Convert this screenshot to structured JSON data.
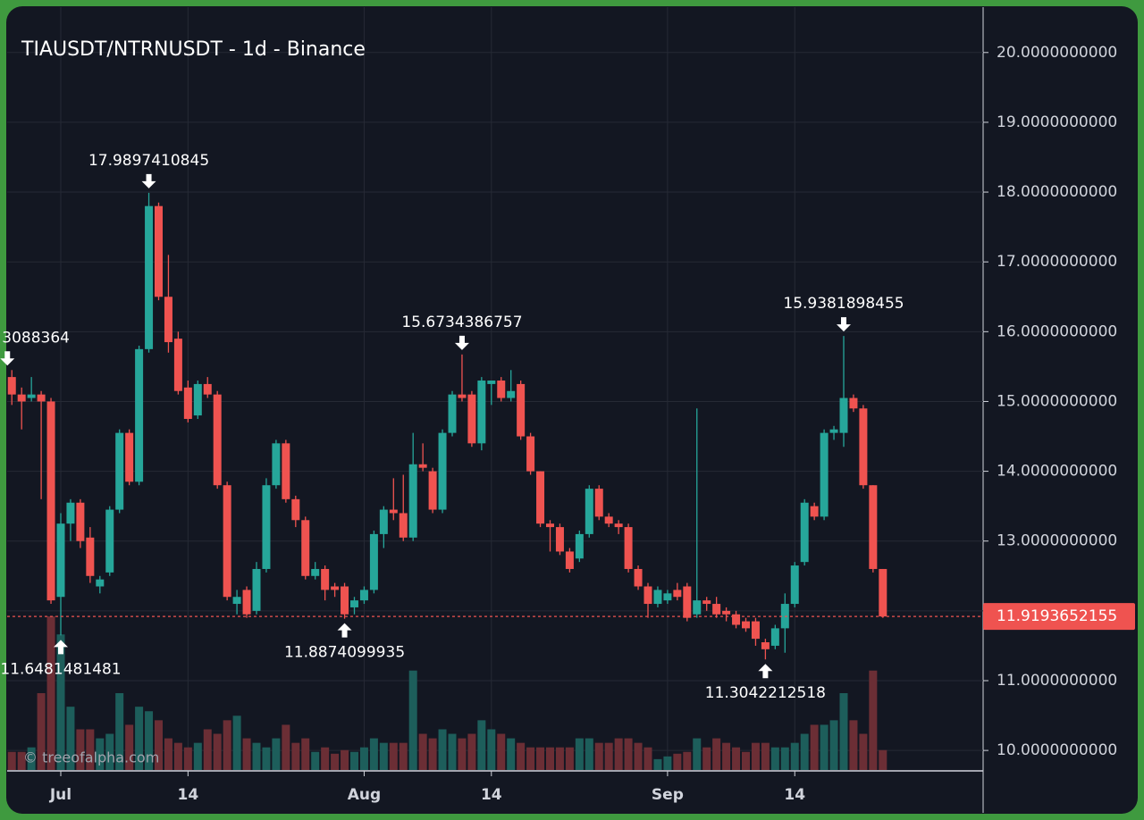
{
  "chart_data": {
    "type": "candlestick",
    "title": "TIAUSDT/NTRNUSDT - 1d - Binance",
    "watermark": "© treeofalpha.com",
    "annotations": [
      "3088364"
    ],
    "x": [
      "Jun 26",
      "Jun 27",
      "Jun 28",
      "Jun 29",
      "Jun 30",
      "Jul 1",
      "Jul 2",
      "Jul 3",
      "Jul 4",
      "Jul 5",
      "Jul 6",
      "Jul 7",
      "Jul 8",
      "Jul 9",
      "Jul 10",
      "Jul 11",
      "Jul 12",
      "Jul 13",
      "Jul 14",
      "Jul 15",
      "Jul 16",
      "Jul 17",
      "Jul 18",
      "Jul 19",
      "Jul 20",
      "Jul 21",
      "Jul 22",
      "Jul 23",
      "Jul 24",
      "Jul 25",
      "Jul 26",
      "Jul 27",
      "Jul 28",
      "Jul 29",
      "Jul 30",
      "Jul 31",
      "Aug 1",
      "Aug 2",
      "Aug 3",
      "Aug 4",
      "Aug 5",
      "Aug 6",
      "Aug 7",
      "Aug 8",
      "Aug 9",
      "Aug 10",
      "Aug 11",
      "Aug 12",
      "Aug 13",
      "Aug 14",
      "Aug 15",
      "Aug 16",
      "Aug 17",
      "Aug 18",
      "Aug 19",
      "Aug 20",
      "Aug 21",
      "Aug 22",
      "Aug 23",
      "Aug 24",
      "Aug 25",
      "Aug 26",
      "Aug 27",
      "Aug 28",
      "Aug 29",
      "Aug 30",
      "Aug 31",
      "Sep 1",
      "Sep 2",
      "Sep 3",
      "Sep 4",
      "Sep 5",
      "Sep 6",
      "Sep 7",
      "Sep 8",
      "Sep 9",
      "Sep 10",
      "Sep 11",
      "Sep 12",
      "Sep 13",
      "Sep 14",
      "Sep 15",
      "Sep 16",
      "Sep 17",
      "Sep 18",
      "Sep 19",
      "Sep 20",
      "Sep 21",
      "Sep 22",
      "Sep 23"
    ],
    "open": [
      15.35,
      15.1,
      15.05,
      15.1,
      15.0,
      12.2,
      13.25,
      13.55,
      13.05,
      12.35,
      12.55,
      13.45,
      14.55,
      13.85,
      15.75,
      17.8,
      16.5,
      15.9,
      15.2,
      14.8,
      15.25,
      15.1,
      13.8,
      12.1,
      12.3,
      12.0,
      12.6,
      13.8,
      14.4,
      13.6,
      13.3,
      12.5,
      12.6,
      12.35,
      12.35,
      12.05,
      12.15,
      12.3,
      13.1,
      13.45,
      13.4,
      13.05,
      14.1,
      14.0,
      13.45,
      14.55,
      15.1,
      15.1,
      14.4,
      15.25,
      15.3,
      15.05,
      15.25,
      14.5,
      14.0,
      13.25,
      13.2,
      12.85,
      12.75,
      13.1,
      13.75,
      13.35,
      13.25,
      13.2,
      12.6,
      12.35,
      12.1,
      12.15,
      12.3,
      12.35,
      11.95,
      12.15,
      12.1,
      12.0,
      11.95,
      11.85,
      11.85,
      11.55,
      11.5,
      11.75,
      12.1,
      12.7,
      13.5,
      13.35,
      14.55,
      14.55,
      15.05,
      14.9,
      13.8,
      12.6
    ],
    "high": [
      15.45,
      15.2,
      15.35,
      15.15,
      15.05,
      13.4,
      13.6,
      13.6,
      13.2,
      12.5,
      13.5,
      14.6,
      14.6,
      15.8,
      17.9897410845,
      17.85,
      17.1,
      16.0,
      15.3,
      15.3,
      15.35,
      15.15,
      13.85,
      12.3,
      12.35,
      12.7,
      13.9,
      14.45,
      14.45,
      13.65,
      13.35,
      12.7,
      12.65,
      12.4,
      12.4,
      12.2,
      12.35,
      13.15,
      13.5,
      13.9,
      13.95,
      14.55,
      14.4,
      14.05,
      14.6,
      15.15,
      15.6734386757,
      15.15,
      15.35,
      15.3,
      15.35,
      15.45,
      15.3,
      14.55,
      14.0,
      13.3,
      13.25,
      12.9,
      13.15,
      13.8,
      13.8,
      13.4,
      13.3,
      13.25,
      12.65,
      12.4,
      12.35,
      12.3,
      12.4,
      12.4,
      14.9,
      12.2,
      12.2,
      12.05,
      12.0,
      11.9,
      11.9,
      11.6,
      11.8,
      12.25,
      12.7,
      13.6,
      13.55,
      14.6,
      14.65,
      15.9381898455,
      15.1,
      14.95,
      13.8,
      12.6
    ],
    "low": [
      14.95,
      14.6,
      15.0,
      13.6,
      12.1,
      11.6481481481,
      13.0,
      12.9,
      12.4,
      12.25,
      12.5,
      13.4,
      13.8,
      13.8,
      15.7,
      16.45,
      15.7,
      15.1,
      14.7,
      14.75,
      15.05,
      13.75,
      12.15,
      11.95,
      11.9,
      11.95,
      12.55,
      13.75,
      13.55,
      13.2,
      12.45,
      12.45,
      12.15,
      12.2,
      11.8874099935,
      11.95,
      12.1,
      12.25,
      12.9,
      13.3,
      13.0,
      13.0,
      14.0,
      13.4,
      13.4,
      14.5,
      15.0,
      14.35,
      14.3,
      14.95,
      15.0,
      15.0,
      14.45,
      13.95,
      13.2,
      12.85,
      12.8,
      12.55,
      12.7,
      13.05,
      13.3,
      13.2,
      13.1,
      12.55,
      12.3,
      11.9,
      12.05,
      12.1,
      12.15,
      11.85,
      11.9,
      12.0,
      11.9,
      11.85,
      11.75,
      11.7,
      11.5,
      11.3042212518,
      11.45,
      11.4,
      12.05,
      12.65,
      13.3,
      13.3,
      14.45,
      14.35,
      14.85,
      13.75,
      12.55,
      11.9
    ],
    "close": [
      15.1,
      15.0,
      15.1,
      15.0,
      12.15,
      13.25,
      13.55,
      13.0,
      12.5,
      12.45,
      13.45,
      14.55,
      13.85,
      15.75,
      17.8,
      16.5,
      15.85,
      15.15,
      14.75,
      15.25,
      15.1,
      13.8,
      12.2,
      12.2,
      11.95,
      12.6,
      13.8,
      14.4,
      13.6,
      13.3,
      12.5,
      12.6,
      12.3,
      12.3,
      11.95,
      12.15,
      12.3,
      13.1,
      13.45,
      13.4,
      13.05,
      14.1,
      14.05,
      13.45,
      14.55,
      15.1,
      15.05,
      14.4,
      15.3,
      15.3,
      15.05,
      15.15,
      14.5,
      14.0,
      13.25,
      13.2,
      12.85,
      12.6,
      13.1,
      13.75,
      13.35,
      13.25,
      13.2,
      12.6,
      12.35,
      12.1,
      12.3,
      12.25,
      12.2,
      11.9,
      12.15,
      12.1,
      11.95,
      11.95,
      11.8,
      11.75,
      11.6,
      11.45,
      11.75,
      12.1,
      12.65,
      13.55,
      13.35,
      14.55,
      14.6,
      15.05,
      14.9,
      13.8,
      12.6,
      11.9193652155
    ],
    "volume": [
      20,
      20,
      25,
      85,
      170,
      150,
      70,
      45,
      45,
      35,
      40,
      85,
      50,
      70,
      65,
      55,
      35,
      30,
      25,
      30,
      45,
      40,
      55,
      60,
      35,
      30,
      25,
      35,
      50,
      30,
      35,
      20,
      25,
      18,
      22,
      20,
      25,
      35,
      30,
      30,
      30,
      110,
      40,
      35,
      45,
      40,
      35,
      40,
      55,
      45,
      40,
      35,
      30,
      25,
      25,
      25,
      25,
      25,
      35,
      35,
      30,
      30,
      35,
      35,
      30,
      25,
      12,
      15,
      18,
      20,
      35,
      25,
      35,
      30,
      25,
      20,
      30,
      30,
      25,
      25,
      30,
      40,
      50,
      50,
      55,
      85,
      55,
      40,
      110,
      22
    ],
    "up_color": "#26a69a",
    "down_color": "#ef5350",
    "volume_up_color": "#1d5e5b",
    "volume_down_color": "#6b2e35",
    "ylim": [
      9.72,
      20.65
    ],
    "yticks": [
      {
        "value": 10,
        "label": "10.0000000000"
      },
      {
        "value": 11,
        "label": "11.0000000000"
      },
      {
        "value": 12,
        "label": "12.0000000000"
      },
      {
        "value": 13,
        "label": "13.0000000000"
      },
      {
        "value": 14,
        "label": "14.0000000000"
      },
      {
        "value": 15,
        "label": "15.0000000000"
      },
      {
        "value": 16,
        "label": "16.0000000000"
      },
      {
        "value": 17,
        "label": "17.0000000000"
      },
      {
        "value": 18,
        "label": "18.0000000000"
      },
      {
        "value": 19,
        "label": "19.0000000000"
      },
      {
        "value": 20,
        "label": "20.0000000000"
      }
    ],
    "xticks": [
      {
        "value": "Jul 1",
        "label": "Jul"
      },
      {
        "value": "Jul 14",
        "label": "14"
      },
      {
        "value": "Aug 1",
        "label": "Aug"
      },
      {
        "value": "Aug 14",
        "label": "14"
      },
      {
        "value": "Sep 1",
        "label": "Sep"
      },
      {
        "value": "Sep 14",
        "label": "14"
      }
    ],
    "grid": true
  }
}
